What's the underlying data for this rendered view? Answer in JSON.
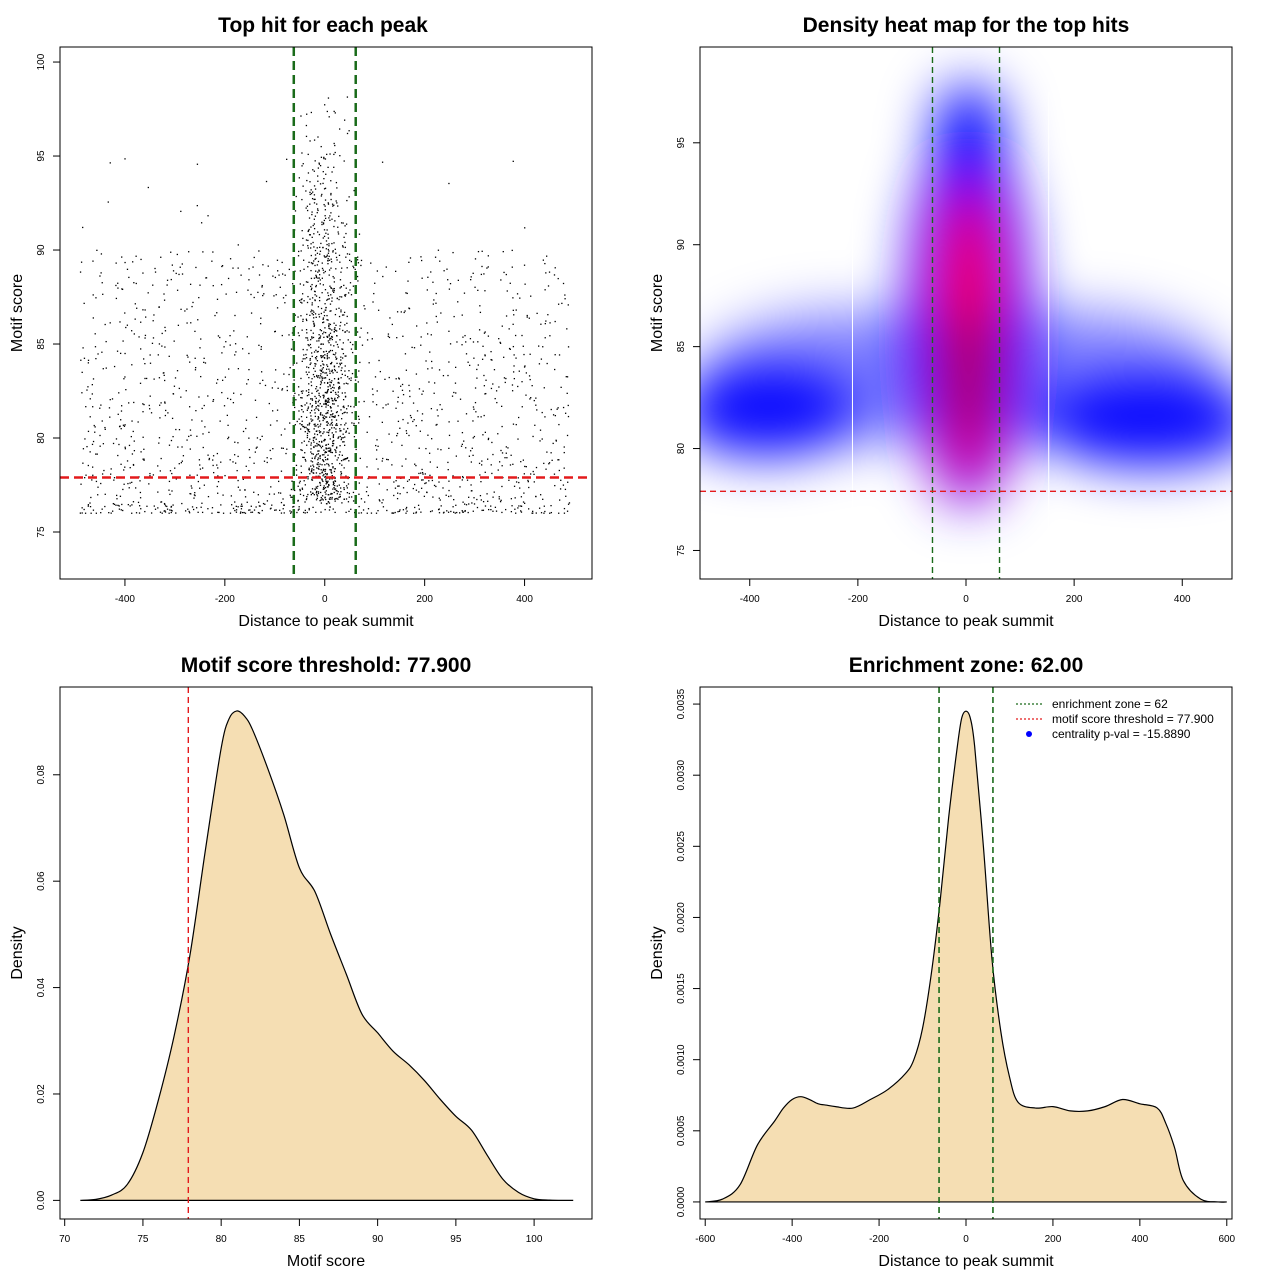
{
  "chart_data": [
    {
      "type": "scatter",
      "title": "Top hit for each peak",
      "xlabel": "Distance to peak summit",
      "ylabel": "Motif score",
      "xlim": [
        -530,
        535
      ],
      "ylim": [
        72.5,
        100.8
      ],
      "xticks": [
        -400,
        -200,
        0,
        200,
        400
      ],
      "yticks": [
        75,
        80,
        85,
        90,
        95,
        100
      ],
      "lines": {
        "vertical": [
          -62,
          62
        ],
        "horizontal": 77.9
      },
      "colors": {
        "points": "#000000",
        "threshold": "#e41a1c",
        "zone": "#1a6b1a"
      },
      "grid": false,
      "points_summary": "approximately 3000 points: dense band x in [-60,60], y 76-99; sparse background x in [-490,490], y 73-98"
    },
    {
      "type": "heatmap",
      "title": "Density heat map for the top hits",
      "xlabel": "Distance to peak summit",
      "ylabel": "Motif score",
      "xlim": [
        -492,
        492
      ],
      "ylim": [
        73.6,
        99.7
      ],
      "xticks": [
        -400,
        -200,
        0,
        200,
        400
      ],
      "yticks": [
        75,
        80,
        85,
        90,
        95
      ],
      "lines": {
        "vertical": [
          -62,
          62
        ],
        "horizontal": 77.9
      },
      "colors": {
        "low": "#ffffff",
        "mid": "#0000ff",
        "high": "#ff0000"
      },
      "grid": false
    },
    {
      "type": "area",
      "title": "Motif score threshold: 77.900",
      "xlabel": "Motif score",
      "ylabel": "Density",
      "xlim": [
        69.7,
        103.7
      ],
      "ylim": [
        -0.0035,
        0.0965
      ],
      "xticks": [
        70,
        75,
        80,
        85,
        90,
        95,
        100
      ],
      "yticks": [
        "0.00",
        "0.02",
        "0.04",
        "0.06",
        "0.08"
      ],
      "threshold": 77.9,
      "x": [
        71,
        72,
        73,
        74,
        75,
        76,
        77,
        78,
        79,
        80,
        80.5,
        81,
        81.5,
        82,
        83,
        84,
        85,
        86,
        87,
        88,
        89,
        90,
        91,
        92,
        93,
        94,
        95,
        96,
        97,
        98,
        99,
        100,
        101,
        102,
        102.5
      ],
      "y": [
        0.0,
        0.0002,
        0.001,
        0.003,
        0.009,
        0.019,
        0.031,
        0.046,
        0.066,
        0.085,
        0.0905,
        0.092,
        0.091,
        0.0885,
        0.081,
        0.0725,
        0.0625,
        0.058,
        0.05,
        0.0425,
        0.035,
        0.0315,
        0.028,
        0.0255,
        0.0225,
        0.019,
        0.0158,
        0.0132,
        0.0085,
        0.004,
        0.0015,
        0.0003,
        5e-05,
        0.0,
        0.0
      ],
      "colors": {
        "fill": "#f5deb3",
        "line": "#000000",
        "threshold": "#e41a1c"
      },
      "grid": false
    },
    {
      "type": "area",
      "title": "Enrichment zone: 62.00",
      "xlabel": "Distance to peak summit",
      "ylabel": "Density",
      "xlim": [
        -612,
        612
      ],
      "ylim": [
        -0.00012,
        0.00362
      ],
      "xticks": [
        -600,
        -400,
        -200,
        0,
        200,
        400,
        600
      ],
      "yticks": [
        "0.0000",
        "0.0005",
        "0.0010",
        "0.0015",
        "0.0020",
        "0.0025",
        "0.0030",
        "0.0035"
      ],
      "zone": [
        -62,
        62
      ],
      "x": [
        -600,
        -560,
        -520,
        -480,
        -440,
        -420,
        -400,
        -380,
        -360,
        -340,
        -320,
        -300,
        -260,
        -220,
        -180,
        -140,
        -120,
        -100,
        -80,
        -60,
        -40,
        -20,
        -10,
        0,
        10,
        20,
        40,
        60,
        80,
        100,
        120,
        160,
        200,
        240,
        280,
        320,
        360,
        400,
        440,
        460,
        480,
        500,
        540,
        580,
        600
      ],
      "y": [
        0.0,
        2e-05,
        0.00012,
        0.0004,
        0.00057,
        0.00066,
        0.00072,
        0.00074,
        0.00072,
        0.00069,
        0.00068,
        0.00067,
        0.00066,
        0.00072,
        0.00079,
        0.0009,
        0.001,
        0.00122,
        0.0016,
        0.0021,
        0.0027,
        0.0032,
        0.0034,
        0.00345,
        0.0034,
        0.0032,
        0.0025,
        0.0017,
        0.0012,
        0.00088,
        0.0007,
        0.00066,
        0.00067,
        0.00064,
        0.00064,
        0.00067,
        0.00072,
        0.00069,
        0.00066,
        0.00055,
        0.00038,
        0.00015,
        2e-05,
        0.0,
        0.0
      ],
      "legend": {
        "position": "top-right",
        "entries": [
          "enrichment zone = 62",
          "motif score threshold = 77.900",
          "centrality p-val = -15.8890"
        ]
      },
      "colors": {
        "fill": "#f5deb3",
        "line": "#000000",
        "zone": "#1a6b1a",
        "threshold": "#e41a1c",
        "pval": "#0000ff"
      },
      "grid": false
    }
  ]
}
